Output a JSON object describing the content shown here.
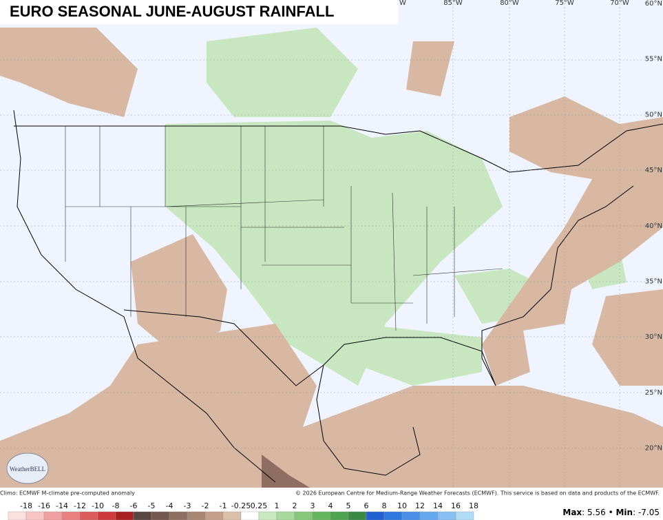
{
  "title": "EURO SEASONAL JUNE-AUGUST RAINFALL",
  "lon_labels": [
    "W",
    "85°W",
    "80°W",
    "75°W",
    "70°W"
  ],
  "lat_labels": [
    "60°N",
    "55°N",
    "50°N",
    "45°N",
    "40°N",
    "35°N",
    "30°N",
    "25°N",
    "20°N"
  ],
  "logo": "WeatherBELL",
  "footer_left": "Climo: ECMWF M-climate pre-computed anomaly",
  "footer_right": "© 2026 European Centre for Medium-Range Weather Forecasts (ECMWF). This service is based on data and products of the ECMWF.",
  "colorbar": {
    "labels": [
      "-18",
      "-16",
      "-14",
      "-12",
      "-10",
      "-8",
      "-6",
      "-5",
      "-4",
      "-3",
      "-2",
      "-1",
      "-0.25",
      "0.25",
      "1",
      "2",
      "3",
      "4",
      "5",
      "6",
      "8",
      "10",
      "12",
      "14",
      "16",
      "18"
    ],
    "colors": [
      "#fde0e0",
      "#f8c4c4",
      "#f0a0a0",
      "#e88080",
      "#dc5c5c",
      "#cc3a3a",
      "#a82020",
      "#5a4640",
      "#74584e",
      "#8e6e60",
      "#a88674",
      "#c4a08a",
      "#dcc0aa",
      "#ffffff",
      "#c8e8c0",
      "#a6d99a",
      "#84c878",
      "#66b660",
      "#4ea44e",
      "#3a8a44",
      "#2060d0",
      "#2e78e0",
      "#4a90ea",
      "#66a8f0",
      "#88c0f4",
      "#b0dcf8"
    ]
  },
  "stats": {
    "max_label": "Max",
    "max": "5.56",
    "min_label": "Min",
    "min": "-7.05"
  }
}
